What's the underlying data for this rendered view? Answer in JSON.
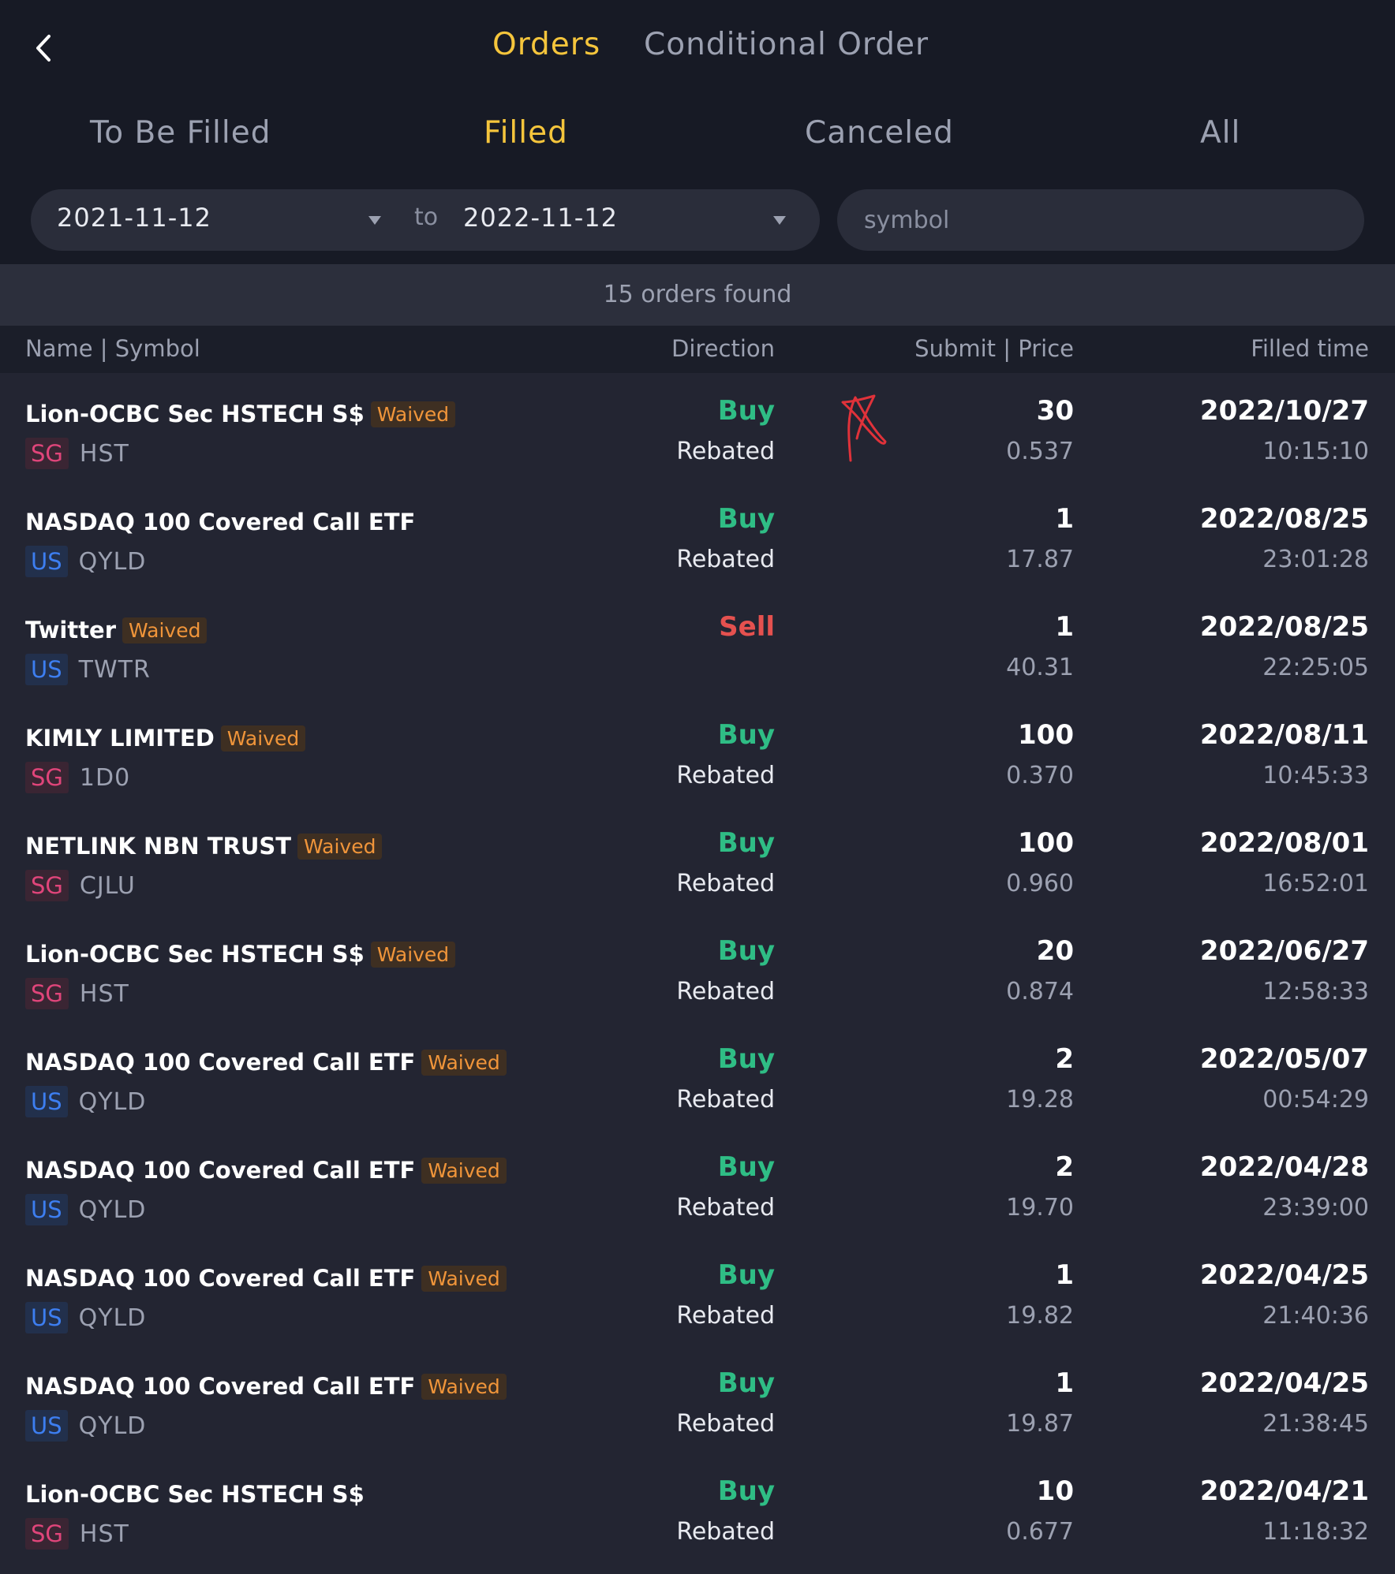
{
  "header": {
    "tabs": [
      {
        "label": "Orders",
        "active": true
      },
      {
        "label": "Conditional Order",
        "active": false
      }
    ],
    "back_icon": "chevron-left-icon"
  },
  "status_tabs": [
    {
      "label": "To Be Filled",
      "active": false
    },
    {
      "label": "Filled",
      "active": true
    },
    {
      "label": "Canceled",
      "active": false
    },
    {
      "label": "All",
      "active": false
    }
  ],
  "filter": {
    "date_from": "2021-11-12",
    "to_label": "to",
    "date_to": "2022-11-12",
    "symbol_placeholder": "symbol",
    "symbol_value": ""
  },
  "summary": "15 orders found",
  "columns": {
    "name_symbol": "Name | Symbol",
    "direction": "Direction",
    "submit_price": "Submit | Price",
    "filled_time": "Filled time"
  },
  "colors": {
    "accent": "#f5c53c",
    "buy": "#2fbd85",
    "sell": "#e5514f",
    "waived": "#f0953a",
    "market_sg": "#e0457a",
    "market_us": "#3d7ef0"
  },
  "orders": [
    {
      "name": "Lion-OCBC Sec HSTECH S$",
      "waived": "Waived",
      "market": "SG",
      "symbol": "HST",
      "direction": "Buy",
      "rebate": "Rebated",
      "qty": "30",
      "price": "0.537",
      "date": "2022/10/27",
      "time": "10:15:10"
    },
    {
      "name": "NASDAQ 100 Covered Call ETF",
      "waived": "",
      "market": "US",
      "symbol": "QYLD",
      "direction": "Buy",
      "rebate": "Rebated",
      "qty": "1",
      "price": "17.87",
      "date": "2022/08/25",
      "time": "23:01:28"
    },
    {
      "name": "Twitter",
      "waived": "Waived",
      "market": "US",
      "symbol": "TWTR",
      "direction": "Sell",
      "rebate": "",
      "qty": "1",
      "price": "40.31",
      "date": "2022/08/25",
      "time": "22:25:05"
    },
    {
      "name": "KIMLY LIMITED",
      "waived": "Waived",
      "market": "SG",
      "symbol": "1D0",
      "direction": "Buy",
      "rebate": "Rebated",
      "qty": "100",
      "price": "0.370",
      "date": "2022/08/11",
      "time": "10:45:33"
    },
    {
      "name": "NETLINK NBN TRUST",
      "waived": "Waived",
      "market": "SG",
      "symbol": "CJLU",
      "direction": "Buy",
      "rebate": "Rebated",
      "qty": "100",
      "price": "0.960",
      "date": "2022/08/01",
      "time": "16:52:01"
    },
    {
      "name": "Lion-OCBC Sec HSTECH S$",
      "waived": "Waived",
      "market": "SG",
      "symbol": "HST",
      "direction": "Buy",
      "rebate": "Rebated",
      "qty": "20",
      "price": "0.874",
      "date": "2022/06/27",
      "time": "12:58:33"
    },
    {
      "name": "NASDAQ 100 Covered Call ETF",
      "waived": "Waived",
      "market": "US",
      "symbol": "QYLD",
      "direction": "Buy",
      "rebate": "Rebated",
      "qty": "2",
      "price": "19.28",
      "date": "2022/05/07",
      "time": "00:54:29"
    },
    {
      "name": "NASDAQ 100 Covered Call ETF",
      "waived": "Waived",
      "market": "US",
      "symbol": "QYLD",
      "direction": "Buy",
      "rebate": "Rebated",
      "qty": "2",
      "price": "19.70",
      "date": "2022/04/28",
      "time": "23:39:00"
    },
    {
      "name": "NASDAQ 100 Covered Call ETF",
      "waived": "Waived",
      "market": "US",
      "symbol": "QYLD",
      "direction": "Buy",
      "rebate": "Rebated",
      "qty": "1",
      "price": "19.82",
      "date": "2022/04/25",
      "time": "21:40:36"
    },
    {
      "name": "NASDAQ 100 Covered Call ETF",
      "waived": "Waived",
      "market": "US",
      "symbol": "QYLD",
      "direction": "Buy",
      "rebate": "Rebated",
      "qty": "1",
      "price": "19.87",
      "date": "2022/04/25",
      "time": "21:38:45"
    },
    {
      "name": "Lion-OCBC Sec HSTECH S$",
      "waived": "",
      "market": "SG",
      "symbol": "HST",
      "direction": "Buy",
      "rebate": "Rebated",
      "qty": "10",
      "price": "0.677",
      "date": "2022/04/21",
      "time": "11:18:32"
    }
  ]
}
